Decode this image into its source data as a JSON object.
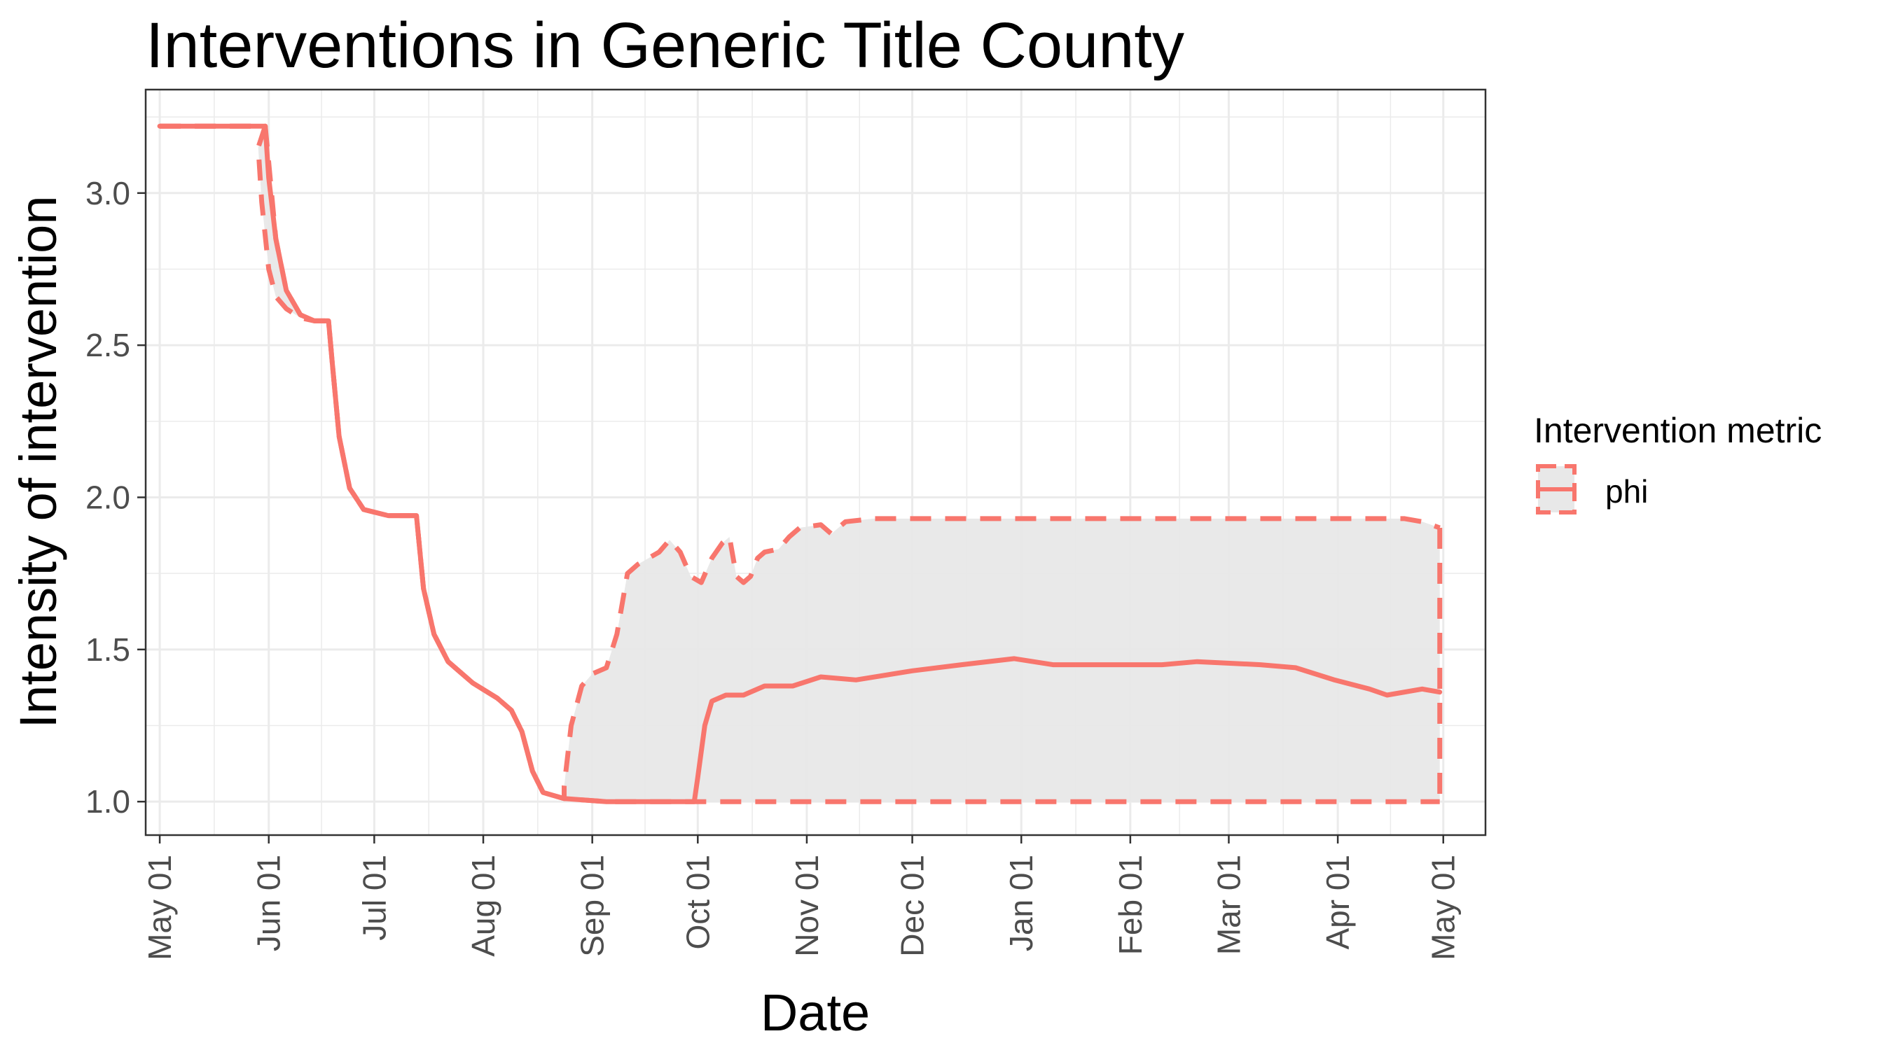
{
  "chart_data": {
    "type": "line",
    "title": "Interventions in Generic Title County",
    "xlabel": "Date",
    "ylabel": "Intensity of intervention",
    "x_ticks": [
      "May 01",
      "Jun 01",
      "Jul 01",
      "Aug 01",
      "Sep 01",
      "Oct 01",
      "Nov 01",
      "Dec 01",
      "Jan 01",
      "Feb 01",
      "Mar 01",
      "Apr 01",
      "May 01"
    ],
    "y_ticks": [
      "1.0",
      "1.5",
      "2.0",
      "2.5",
      "3.0"
    ],
    "xlim": [
      "2020-04-27",
      "2021-05-13"
    ],
    "ylim": [
      0.89,
      3.34
    ],
    "grid": true,
    "legend": {
      "title": "Intervention metric",
      "position": "right",
      "entries": [
        "phi"
      ]
    },
    "colors": {
      "line": "#F8766D",
      "ribbon": "#E8E8E8",
      "grid": "#EBEBEB",
      "panel_border": "#333333"
    },
    "series": [
      {
        "name": "phi",
        "style": "solid",
        "points": [
          [
            "2020-05-01",
            3.22
          ],
          [
            "2020-05-31",
            3.22
          ],
          [
            "2020-06-01",
            3.05
          ],
          [
            "2020-06-03",
            2.85
          ],
          [
            "2020-06-06",
            2.68
          ],
          [
            "2020-06-10",
            2.6
          ],
          [
            "2020-06-14",
            2.58
          ],
          [
            "2020-06-18",
            2.58
          ],
          [
            "2020-06-19",
            2.45
          ],
          [
            "2020-06-21",
            2.2
          ],
          [
            "2020-06-24",
            2.03
          ],
          [
            "2020-06-28",
            1.96
          ],
          [
            "2020-07-05",
            1.94
          ],
          [
            "2020-07-13",
            1.94
          ],
          [
            "2020-07-15",
            1.7
          ],
          [
            "2020-07-18",
            1.55
          ],
          [
            "2020-07-22",
            1.46
          ],
          [
            "2020-07-29",
            1.39
          ],
          [
            "2020-08-05",
            1.34
          ],
          [
            "2020-08-09",
            1.3
          ],
          [
            "2020-08-12",
            1.23
          ],
          [
            "2020-08-15",
            1.1
          ],
          [
            "2020-08-18",
            1.03
          ],
          [
            "2020-08-24",
            1.01
          ],
          [
            "2020-09-05",
            1.0
          ],
          [
            "2020-09-30",
            1.0
          ],
          [
            "2020-10-01",
            1.08
          ],
          [
            "2020-10-03",
            1.25
          ],
          [
            "2020-10-05",
            1.33
          ],
          [
            "2020-10-09",
            1.35
          ],
          [
            "2020-10-14",
            1.35
          ],
          [
            "2020-10-20",
            1.38
          ],
          [
            "2020-10-28",
            1.38
          ],
          [
            "2020-11-05",
            1.41
          ],
          [
            "2020-11-15",
            1.4
          ],
          [
            "2020-12-01",
            1.43
          ],
          [
            "2020-12-15",
            1.45
          ],
          [
            "2020-12-30",
            1.47
          ],
          [
            "2021-01-10",
            1.45
          ],
          [
            "2021-01-25",
            1.45
          ],
          [
            "2021-02-10",
            1.45
          ],
          [
            "2021-02-20",
            1.46
          ],
          [
            "2021-03-10",
            1.45
          ],
          [
            "2021-03-20",
            1.44
          ],
          [
            "2021-03-31",
            1.4
          ],
          [
            "2021-04-10",
            1.37
          ],
          [
            "2021-04-15",
            1.35
          ],
          [
            "2021-04-25",
            1.37
          ],
          [
            "2021-04-30",
            1.36
          ]
        ]
      },
      {
        "name": "phi upper bound",
        "style": "dashed",
        "points": [
          [
            "2020-05-01",
            3.22
          ],
          [
            "2020-05-31",
            3.22
          ],
          [
            "2020-06-01",
            3.1
          ],
          [
            "2020-06-03",
            2.85
          ],
          [
            "2020-06-06",
            2.68
          ],
          [
            "2020-06-10",
            2.6
          ],
          [
            "2020-06-14",
            2.58
          ],
          [
            "2020-06-18",
            2.58
          ],
          [
            "2020-06-19",
            2.45
          ],
          [
            "2020-06-21",
            2.2
          ],
          [
            "2020-06-24",
            2.03
          ],
          [
            "2020-06-28",
            1.96
          ],
          [
            "2020-07-05",
            1.94
          ],
          [
            "2020-07-13",
            1.94
          ],
          [
            "2020-07-15",
            1.7
          ],
          [
            "2020-07-18",
            1.55
          ],
          [
            "2020-07-22",
            1.46
          ],
          [
            "2020-07-29",
            1.39
          ],
          [
            "2020-08-05",
            1.34
          ],
          [
            "2020-08-09",
            1.3
          ],
          [
            "2020-08-12",
            1.23
          ],
          [
            "2020-08-15",
            1.1
          ],
          [
            "2020-08-18",
            1.03
          ],
          [
            "2020-08-24",
            1.01
          ],
          [
            "2020-08-24",
            1.05
          ],
          [
            "2020-08-26",
            1.25
          ],
          [
            "2020-08-29",
            1.38
          ],
          [
            "2020-09-01",
            1.42
          ],
          [
            "2020-09-05",
            1.44
          ],
          [
            "2020-09-08",
            1.55
          ],
          [
            "2020-09-11",
            1.75
          ],
          [
            "2020-09-14",
            1.78
          ],
          [
            "2020-09-17",
            1.8
          ],
          [
            "2020-09-20",
            1.82
          ],
          [
            "2020-09-23",
            1.86
          ],
          [
            "2020-09-26",
            1.82
          ],
          [
            "2020-09-29",
            1.74
          ],
          [
            "2020-10-02",
            1.72
          ],
          [
            "2020-10-05",
            1.8
          ],
          [
            "2020-10-08",
            1.85
          ],
          [
            "2020-10-10",
            1.87
          ],
          [
            "2020-10-12",
            1.74
          ],
          [
            "2020-10-14",
            1.72
          ],
          [
            "2020-10-16",
            1.74
          ],
          [
            "2020-10-18",
            1.8
          ],
          [
            "2020-10-20",
            1.82
          ],
          [
            "2020-10-24",
            1.83
          ],
          [
            "2020-10-27",
            1.87
          ],
          [
            "2020-10-30",
            1.9
          ],
          [
            "2020-11-05",
            1.91
          ],
          [
            "2020-11-08",
            1.88
          ],
          [
            "2020-11-12",
            1.92
          ],
          [
            "2020-11-20",
            1.93
          ],
          [
            "2020-12-15",
            1.93
          ],
          [
            "2021-02-01",
            1.93
          ],
          [
            "2021-03-15",
            1.93
          ],
          [
            "2021-04-20",
            1.93
          ],
          [
            "2021-04-25",
            1.92
          ],
          [
            "2021-04-30",
            1.9
          ]
        ]
      },
      {
        "name": "phi lower bound",
        "style": "dashed",
        "points": [
          [
            "2020-05-01",
            3.22
          ],
          [
            "2020-05-31",
            3.22
          ],
          [
            "2020-05-29",
            3.15
          ],
          [
            "2020-05-30",
            2.97
          ],
          [
            "2020-06-01",
            2.75
          ],
          [
            "2020-06-03",
            2.66
          ],
          [
            "2020-06-06",
            2.62
          ],
          [
            "2020-06-10",
            2.59
          ],
          [
            "2020-06-14",
            2.58
          ],
          [
            "2020-06-18",
            2.58
          ],
          [
            "2020-06-19",
            2.45
          ],
          [
            "2020-06-21",
            2.2
          ],
          [
            "2020-06-24",
            2.03
          ],
          [
            "2020-06-28",
            1.96
          ],
          [
            "2020-07-05",
            1.94
          ],
          [
            "2020-07-13",
            1.94
          ],
          [
            "2020-07-15",
            1.7
          ],
          [
            "2020-07-18",
            1.55
          ],
          [
            "2020-07-22",
            1.46
          ],
          [
            "2020-07-29",
            1.39
          ],
          [
            "2020-08-05",
            1.34
          ],
          [
            "2020-08-09",
            1.3
          ],
          [
            "2020-08-12",
            1.23
          ],
          [
            "2020-08-15",
            1.1
          ],
          [
            "2020-08-18",
            1.03
          ],
          [
            "2020-08-24",
            1.01
          ],
          [
            "2020-09-05",
            1.0
          ],
          [
            "2021-04-30",
            1.0
          ]
        ]
      }
    ],
    "ribbon_ranges": [
      {
        "from": "2020-05-29",
        "to": "2020-06-14",
        "lower": "phi lower bound",
        "upper": "phi upper bound"
      },
      {
        "from": "2020-08-24",
        "to": "2021-04-30",
        "lower": "phi lower bound",
        "upper": "phi upper bound"
      }
    ]
  }
}
